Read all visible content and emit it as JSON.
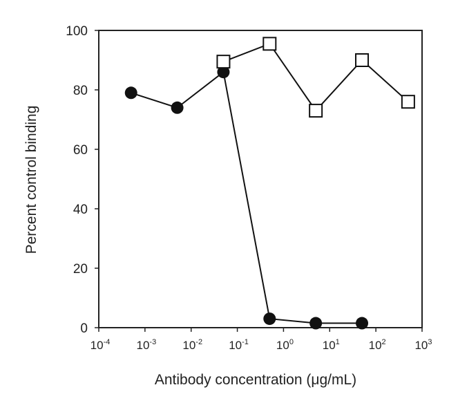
{
  "chart_data": {
    "type": "line",
    "title": "",
    "xlabel": "Antibody concentration (μg/mL)",
    "ylabel": "Percent control binding",
    "xscale": "log",
    "xlim": [
      0.0001,
      1000
    ],
    "ylim": [
      0,
      100
    ],
    "x_ticks": [
      {
        "base": "10",
        "exp": "-4",
        "value": 0.0001
      },
      {
        "base": "10",
        "exp": "-3",
        "value": 0.001
      },
      {
        "base": "10",
        "exp": "-2",
        "value": 0.01
      },
      {
        "base": "10",
        "exp": "-1",
        "value": 0.1
      },
      {
        "base": "10",
        "exp": "0",
        "value": 1
      },
      {
        "base": "10",
        "exp": "1",
        "value": 10
      },
      {
        "base": "10",
        "exp": "2",
        "value": 100
      },
      {
        "base": "10",
        "exp": "3",
        "value": 1000
      }
    ],
    "y_ticks": [
      "0",
      "20",
      "40",
      "60",
      "80",
      "100"
    ],
    "grid": false,
    "series": [
      {
        "name": "filled-circles",
        "marker": "circle-filled",
        "x": [
          0.0005,
          0.005,
          0.05,
          0.5,
          5,
          50
        ],
        "y": [
          79,
          74,
          86,
          3,
          1.5,
          1.5
        ]
      },
      {
        "name": "open-squares",
        "marker": "square-open",
        "x": [
          0.05,
          0.5,
          5,
          50,
          500
        ],
        "y": [
          89.5,
          95.5,
          73,
          90,
          76
        ]
      }
    ]
  }
}
